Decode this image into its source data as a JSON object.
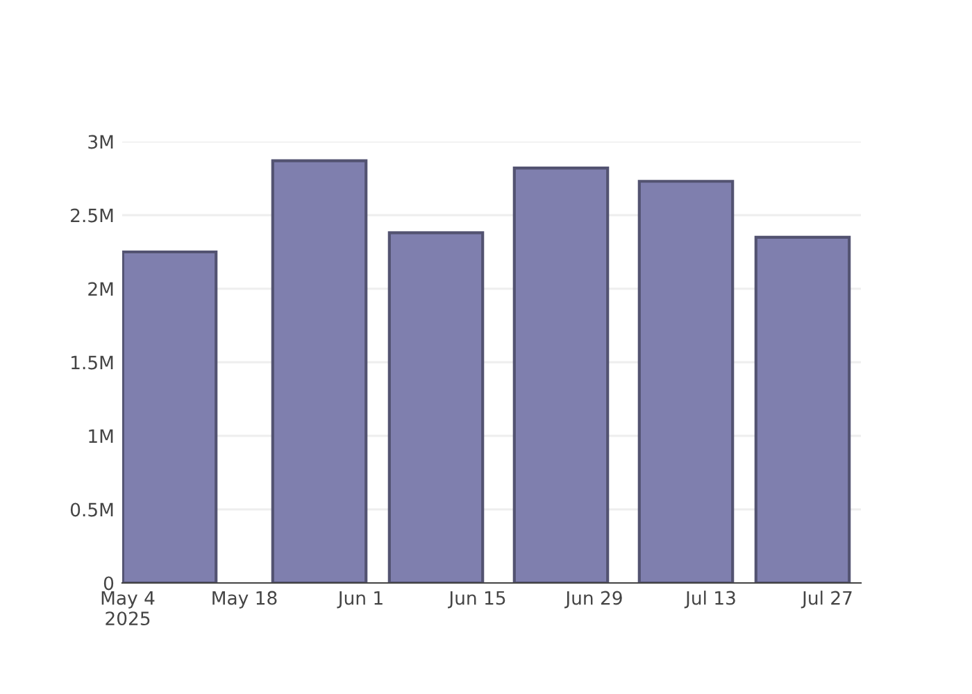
{
  "chart_data": {
    "type": "bar",
    "x": [
      "2025-05-09",
      "2025-05-27",
      "2025-06-10",
      "2025-06-25",
      "2025-07-10",
      "2025-07-24"
    ],
    "series": [
      {
        "color": "#7f7fae",
        "values": [
          2250000,
          2870000,
          2380000,
          2820000,
          2730000,
          2350000
        ]
      }
    ],
    "xlim": [
      "2025-05-03T08:00",
      "2025-07-31"
    ],
    "xticks": [
      {
        "value": "2025-05-04",
        "label": "May 4\n2025"
      },
      {
        "value": "2025-05-18",
        "label": "May 18"
      },
      {
        "value": "2025-06-01",
        "label": "Jun 1"
      },
      {
        "value": "2025-06-15",
        "label": "Jun 15"
      },
      {
        "value": "2025-06-29",
        "label": "Jun 29"
      },
      {
        "value": "2025-07-13",
        "label": "Jul 13"
      },
      {
        "value": "2025-07-27",
        "label": "Jul 27"
      }
    ],
    "ylim": [
      0,
      3000000
    ],
    "yticks": [
      0,
      {
        "value": 500000,
        "label": "0.5M"
      },
      {
        "value": 1000000,
        "label": "1M"
      },
      {
        "value": 1500000,
        "label": "1.5M"
      },
      {
        "value": 2000000,
        "label": "2M"
      },
      {
        "value": 2500000,
        "label": "2.5M"
      },
      {
        "value": 3000000,
        "label": "3M"
      }
    ],
    "grid": "y",
    "legend": false
  }
}
